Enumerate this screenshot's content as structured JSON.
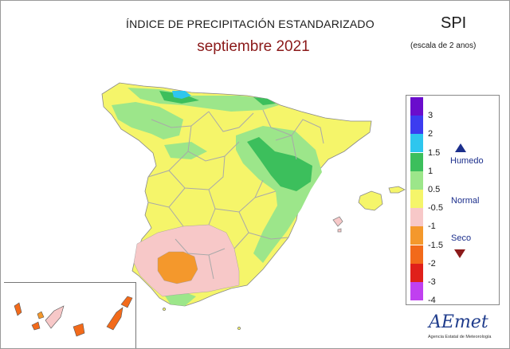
{
  "header": {
    "title": "ÍNDICE DE PRECIPITACIÓN ESTANDARIZADO",
    "subtitle": "septiembre 2021",
    "index_name": "SPI",
    "scale_note": "(escala de 2 anos)"
  },
  "legend": {
    "items": [
      {
        "label": "3",
        "color": "#6a0dcc"
      },
      {
        "label": "2",
        "color": "#3c3cf0"
      },
      {
        "label": "1.5",
        "color": "#2ec6ee"
      },
      {
        "label": "1",
        "color": "#3cbf5c"
      },
      {
        "label": "0.5",
        "color": "#9ce68a"
      },
      {
        "label": "-0.5",
        "color": "#f5f56a"
      },
      {
        "label": "-1",
        "color": "#f7c8c8"
      },
      {
        "label": "-1.5",
        "color": "#f4982c"
      },
      {
        "label": "-2",
        "color": "#f26a1a"
      },
      {
        "label": "-3",
        "color": "#e0201a"
      },
      {
        "label": "-4",
        "color": "#c040f0"
      }
    ],
    "categories": {
      "wet": "Humedo",
      "normal": "Normal",
      "dry": "Seco"
    }
  },
  "colors": {
    "normal": "#f5f56a",
    "moderately_wet": "#9ce68a",
    "very_wet": "#3cbf5c",
    "extremely_wet": "#2ec6ee",
    "moderately_dry": "#f7c8c8",
    "very_dry": "#f4982c",
    "severely_dry": "#f26a1a",
    "borders": "#a9a9a9"
  },
  "logo": {
    "name": "AEmet",
    "caption": "Agencia Estatal de Meteorología"
  }
}
